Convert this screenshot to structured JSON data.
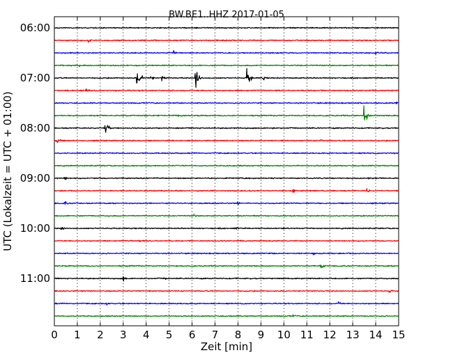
{
  "chart_data": {
    "type": "line",
    "title": "BW.BE1..HHZ 2017-01-05",
    "xlabel": "Zeit  [min]",
    "ylabel": "UTC (Lokalzeit = UTC + 01:00)",
    "xlim": [
      0,
      15
    ],
    "x_ticks": [
      "0",
      "1",
      "2",
      "3",
      "4",
      "5",
      "6",
      "7",
      "8",
      "9",
      "10",
      "11",
      "12",
      "13",
      "14",
      "15"
    ],
    "y_ticks": [
      {
        "label": "06:00",
        "row": 0
      },
      {
        "label": "07:00",
        "row": 4
      },
      {
        "label": "08:00",
        "row": 8
      },
      {
        "label": "09:00",
        "row": 12
      },
      {
        "label": "10:00",
        "row": 16
      },
      {
        "label": "11:00",
        "row": 20
      }
    ],
    "grid": "vertical-dotted",
    "colors": [
      "#000000",
      "#ff0000",
      "#0000ff",
      "#008000"
    ],
    "series": [
      {
        "start": "06:00",
        "events": [
          {
            "t": 6.0,
            "amp": 1.5
          }
        ]
      },
      {
        "start": "06:15",
        "events": [
          {
            "t": 1.5,
            "amp": 4
          }
        ]
      },
      {
        "start": "06:30",
        "events": [
          {
            "t": 5.2,
            "amp": 4
          },
          {
            "t": 14.0,
            "amp": 3
          }
        ]
      },
      {
        "start": "06:45",
        "events": [
          {
            "t": 1.1,
            "amp": 2
          }
        ]
      },
      {
        "start": "07:00",
        "events": [
          {
            "t": 3.6,
            "amp": 10
          },
          {
            "t": 3.8,
            "amp": 7
          },
          {
            "t": 4.2,
            "amp": 5
          },
          {
            "t": 4.7,
            "amp": 5
          },
          {
            "t": 6.15,
            "amp": 18
          },
          {
            "t": 8.4,
            "amp": 16
          },
          {
            "t": 9.1,
            "amp": 4
          }
        ]
      },
      {
        "start": "07:15",
        "events": [
          {
            "t": 1.4,
            "amp": 4
          }
        ]
      },
      {
        "start": "07:30",
        "events": [
          {
            "t": 14.9,
            "amp": 3
          }
        ]
      },
      {
        "start": "07:45",
        "events": [
          {
            "t": 5.4,
            "amp": 3
          },
          {
            "t": 13.5,
            "amp": 15
          }
        ]
      },
      {
        "start": "08:00",
        "events": [
          {
            "t": 2.2,
            "amp": 17
          },
          {
            "t": 3.5,
            "amp": 2
          },
          {
            "t": 9.5,
            "amp": 2
          }
        ]
      },
      {
        "start": "08:15",
        "events": [
          {
            "t": 0.1,
            "amp": 8
          },
          {
            "t": 11.6,
            "amp": 3
          }
        ]
      },
      {
        "start": "08:30",
        "events": []
      },
      {
        "start": "08:45",
        "events": []
      },
      {
        "start": "09:00",
        "events": [
          {
            "t": 0.45,
            "amp": 4
          },
          {
            "t": 13.6,
            "amp": 3
          }
        ]
      },
      {
        "start": "09:15",
        "events": [
          {
            "t": 10.4,
            "amp": 5
          },
          {
            "t": 13.6,
            "amp": 5
          }
        ]
      },
      {
        "start": "09:30",
        "events": [
          {
            "t": 0.45,
            "amp": 4
          },
          {
            "t": 8.0,
            "amp": 3
          }
        ]
      },
      {
        "start": "09:45",
        "events": [
          {
            "t": 6.1,
            "amp": 3
          }
        ]
      },
      {
        "start": "10:00",
        "events": [
          {
            "t": 0.3,
            "amp": 4
          },
          {
            "t": 7.9,
            "amp": 3
          }
        ]
      },
      {
        "start": "10:15",
        "events": [
          {
            "t": 3.7,
            "amp": 4
          }
        ]
      },
      {
        "start": "10:30",
        "events": [
          {
            "t": 11.3,
            "amp": 3
          }
        ]
      },
      {
        "start": "10:45",
        "events": [
          {
            "t": 11.6,
            "amp": 7
          }
        ]
      },
      {
        "start": "11:00",
        "events": [
          {
            "t": 3.0,
            "amp": 5
          },
          {
            "t": 4.8,
            "amp": 3
          }
        ]
      },
      {
        "start": "11:15",
        "events": [
          {
            "t": 14.6,
            "amp": 3
          }
        ]
      },
      {
        "start": "11:30",
        "events": [
          {
            "t": 2.3,
            "amp": 3
          },
          {
            "t": 12.4,
            "amp": 4
          }
        ]
      },
      {
        "start": "11:45",
        "events": [
          {
            "t": 10.4,
            "amp": 3
          }
        ]
      }
    ]
  }
}
